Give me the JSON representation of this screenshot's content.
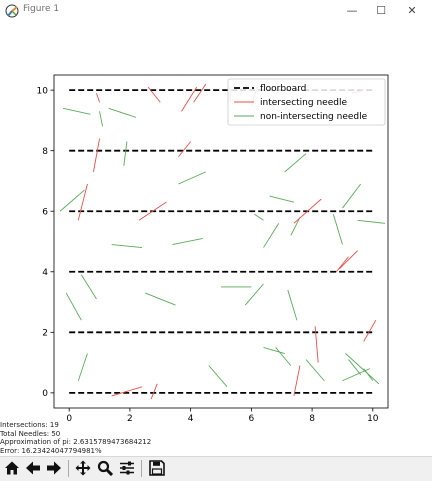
{
  "window": {
    "title": "Figure 1",
    "minimize_glyph": "—",
    "maximize_glyph": "☐",
    "close_glyph": "✕"
  },
  "colors": {
    "floorboard": "#000000",
    "intersecting": "#e8504a",
    "non_intersecting": "#5aaa5a",
    "axes_edge": "#000000"
  },
  "chart_data": {
    "type": "line",
    "xlim": [
      -0.5,
      10.5
    ],
    "ylim": [
      -0.5,
      10.5
    ],
    "x_ticks": [
      0,
      2,
      4,
      6,
      8,
      10
    ],
    "y_ticks": [
      0,
      2,
      4,
      6,
      8,
      10
    ],
    "x_tick_labels": [
      "0",
      "2",
      "4",
      "6",
      "8",
      "10"
    ],
    "y_tick_labels": [
      "0",
      "2",
      "4",
      "6",
      "8",
      "10"
    ],
    "grid": false,
    "legend_position": "upper-right",
    "floorboards": [
      0,
      2,
      4,
      6,
      8,
      10
    ],
    "floorboard_x": [
      0,
      10
    ],
    "legend": [
      {
        "label": "floorboard",
        "style": "dashed",
        "color": "#000000"
      },
      {
        "label": "intersecting needle",
        "style": "solid",
        "color": "#e8504a"
      },
      {
        "label": "non-intersecting needle",
        "style": "solid",
        "color": "#5aaa5a"
      }
    ],
    "intersecting_needles": [
      [
        2.7,
        -0.2,
        2.9,
        0.3
      ],
      [
        1.4,
        -0.1,
        2.4,
        0.2
      ],
      [
        7.4,
        -0.1,
        7.6,
        0.9
      ],
      [
        8.2,
        1.0,
        8.1,
        2.2
      ],
      [
        9.7,
        1.7,
        10.1,
        2.4
      ],
      [
        8.9,
        4.1,
        9.5,
        4.7
      ],
      [
        8.8,
        4.0,
        9.2,
        4.5
      ],
      [
        2.3,
        5.7,
        3.2,
        6.3
      ],
      [
        7.4,
        5.6,
        8.3,
        6.4
      ],
      [
        0.3,
        5.7,
        0.6,
        6.9
      ],
      [
        0.8,
        7.3,
        1.0,
        8.4
      ],
      [
        3.6,
        7.8,
        4.0,
        8.3
      ],
      [
        2.6,
        10.1,
        3.0,
        9.6
      ],
      [
        3.7,
        9.3,
        4.2,
        10.1
      ],
      [
        4.1,
        9.6,
        4.5,
        10.2
      ],
      [
        5.3,
        9.6,
        5.3,
        10.1
      ],
      [
        6.0,
        9.5,
        6.2,
        10.1
      ],
      [
        9.3,
        9.9,
        9.7,
        10.0
      ],
      [
        1.0,
        9.6,
        0.9,
        9.9
      ]
    ],
    "non_intersecting_needles": [
      [
        -0.2,
        9.4,
        0.7,
        9.2
      ],
      [
        1.3,
        9.4,
        2.2,
        9.1
      ],
      [
        1.0,
        9.3,
        1.1,
        8.8
      ],
      [
        1.8,
        7.5,
        1.9,
        8.3
      ],
      [
        3.6,
        6.9,
        4.5,
        7.3
      ],
      [
        6.1,
        5.9,
        6.4,
        5.7
      ],
      [
        6.6,
        6.5,
        7.4,
        6.3
      ],
      [
        7.1,
        7.3,
        7.8,
        7.9
      ],
      [
        9.0,
        6.1,
        9.6,
        6.9
      ],
      [
        -0.3,
        6.0,
        0.5,
        6.7
      ],
      [
        9.5,
        5.7,
        10.4,
        5.6
      ],
      [
        8.7,
        5.9,
        9.0,
        4.9
      ],
      [
        6.4,
        4.8,
        6.9,
        5.6
      ],
      [
        7.3,
        5.2,
        7.6,
        5.8
      ],
      [
        3.4,
        4.9,
        4.4,
        5.1
      ],
      [
        1.4,
        4.9,
        2.4,
        4.8
      ],
      [
        -0.1,
        3.3,
        0.4,
        2.4
      ],
      [
        0.4,
        3.9,
        0.9,
        3.1
      ],
      [
        2.5,
        3.3,
        3.5,
        2.9
      ],
      [
        5.0,
        3.5,
        6.0,
        3.5
      ],
      [
        5.8,
        2.9,
        6.4,
        3.6
      ],
      [
        7.2,
        3.4,
        7.5,
        2.4
      ],
      [
        6.4,
        1.5,
        7.1,
        1.3
      ],
      [
        6.8,
        1.5,
        7.3,
        0.9
      ],
      [
        7.8,
        1.1,
        8.4,
        0.4
      ],
      [
        0.3,
        0.4,
        0.6,
        1.3
      ],
      [
        4.6,
        0.9,
        5.2,
        0.2
      ],
      [
        9.1,
        1.3,
        10.2,
        0.3
      ],
      [
        9.2,
        1.1,
        9.6,
        0.6
      ],
      [
        9.7,
        0.8,
        10.0,
        0.4
      ],
      [
        9.0,
        0.4,
        9.9,
        0.8
      ]
    ]
  },
  "status": {
    "intersections": "Intersections: 19",
    "total": "Total Needles: 50",
    "approx": "Approximation of pi: 2.6315789473684212",
    "error": "Error: 16.23424047794981%"
  },
  "toolbar": {
    "items": [
      {
        "name": "home-button",
        "icon": "home-icon"
      },
      {
        "name": "back-button",
        "icon": "arrow-left-icon"
      },
      {
        "name": "forward-button",
        "icon": "arrow-right-icon"
      },
      {
        "name": "pan-button",
        "icon": "move-icon"
      },
      {
        "name": "zoom-button",
        "icon": "magnifier-icon"
      },
      {
        "name": "configure-subplots-button",
        "icon": "sliders-icon"
      },
      {
        "name": "save-button",
        "icon": "floppy-disk-icon"
      }
    ]
  }
}
